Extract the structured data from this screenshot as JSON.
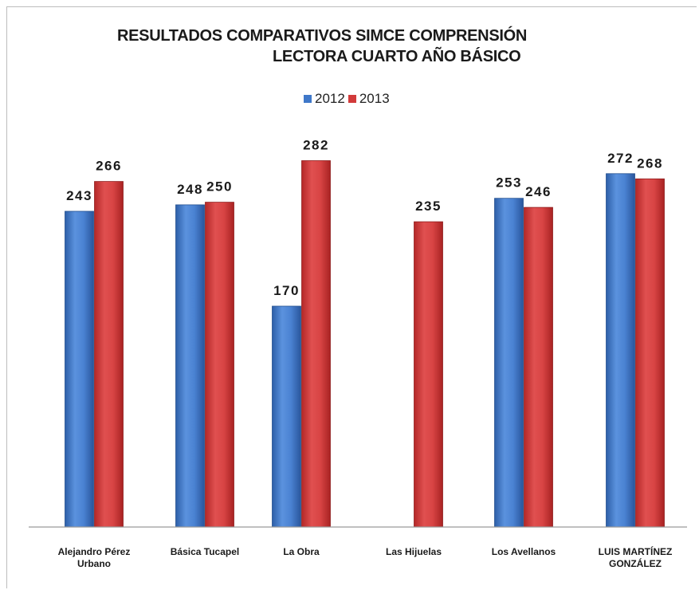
{
  "chart_data": {
    "type": "bar",
    "title_lines": [
      "RESULTADOS COMPARATIVOS SIMCE COMPRENSIÓN",
      "LECTORA CUARTO AÑO BÁSICO"
    ],
    "categories": [
      [
        "Alejandro Pérez",
        "Urbano"
      ],
      [
        "Básica Tucapel"
      ],
      [
        "La Obra"
      ],
      [
        "Las Hijuelas"
      ],
      [
        "Los Avellanos"
      ],
      [
        "LUIS MARTÍNEZ",
        "GONZÁLEZ"
      ]
    ],
    "series": [
      {
        "name": "2012",
        "color": "#3f78c9",
        "values": [
          243,
          248,
          170,
          null,
          253,
          272
        ],
        "labels": [
          "243",
          "248",
          "170",
          "",
          "253",
          "272"
        ]
      },
      {
        "name": "2013",
        "color": "#d23a3a",
        "values": [
          266,
          250,
          282,
          235,
          246,
          268
        ],
        "labels": [
          "266",
          "250",
          "282",
          "235",
          "246",
          "268"
        ]
      }
    ],
    "ylim": [
      0,
      300
    ],
    "grid": false,
    "legend_position": "top"
  }
}
